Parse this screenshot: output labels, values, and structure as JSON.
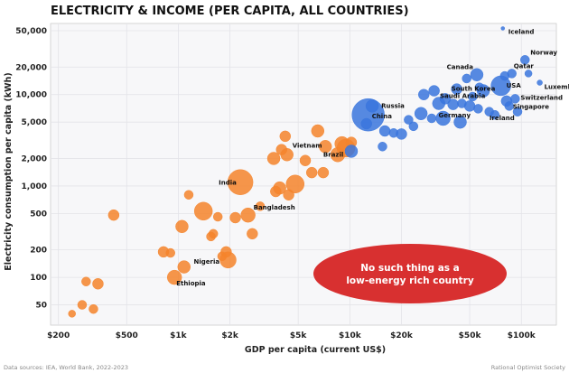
{
  "chart_data": {
    "type": "scatter",
    "title": "ELECTRICITY & INCOME (PER CAPITA, ALL COUNTRIES)",
    "xlabel": "GDP per capita (current US$)",
    "ylabel": "Electricity consumption per capita (kWh)",
    "x_scale": "log",
    "y_scale": "log",
    "xlim": [
      180,
      160000
    ],
    "ylim": [
      30,
      60000
    ],
    "grid": true,
    "x_ticks": [
      {
        "value": 200,
        "label": "$200"
      },
      {
        "value": 500,
        "label": "$500"
      },
      {
        "value": 1000,
        "label": "$1k"
      },
      {
        "value": 2000,
        "label": "$2k"
      },
      {
        "value": 5000,
        "label": "$5k"
      },
      {
        "value": 10000,
        "label": "$10k"
      },
      {
        "value": 20000,
        "label": "$20k"
      },
      {
        "value": 50000,
        "label": "$50k"
      },
      {
        "value": 100000,
        "label": "$100k"
      }
    ],
    "y_ticks": [
      {
        "value": 50,
        "label": "50"
      },
      {
        "value": 100,
        "label": "100"
      },
      {
        "value": 200,
        "label": "200"
      },
      {
        "value": 500,
        "label": "500"
      },
      {
        "value": 1000,
        "label": "1,000"
      },
      {
        "value": 2000,
        "label": "2,000"
      },
      {
        "value": 5000,
        "label": "5,000"
      },
      {
        "value": 10000,
        "label": "10,000"
      },
      {
        "value": 20000,
        "label": "20,000"
      },
      {
        "value": 50000,
        "label": "50,000"
      }
    ],
    "colors": {
      "low_income": "#f4842c",
      "high_income": "#3a75dd",
      "callout": "#d83030"
    },
    "series": [
      {
        "color": "#f4842c",
        "points": [
          {
            "x": 240,
            "y": 40,
            "r": 4
          },
          {
            "x": 275,
            "y": 50,
            "r": 5
          },
          {
            "x": 290,
            "y": 90,
            "r": 5
          },
          {
            "x": 320,
            "y": 45,
            "r": 5
          },
          {
            "x": 340,
            "y": 85,
            "r": 6
          },
          {
            "x": 420,
            "y": 480,
            "r": 6
          },
          {
            "x": 820,
            "y": 190,
            "r": 6
          },
          {
            "x": 900,
            "y": 185,
            "r": 5
          },
          {
            "x": 950,
            "y": 100,
            "r": 8
          },
          {
            "x": 1050,
            "y": 360,
            "r": 7
          },
          {
            "x": 1080,
            "y": 130,
            "r": 7
          },
          {
            "x": 1150,
            "y": 800,
            "r": 5
          },
          {
            "x": 1400,
            "y": 530,
            "r": 10
          },
          {
            "x": 1550,
            "y": 280,
            "r": 5
          },
          {
            "x": 1600,
            "y": 300,
            "r": 5
          },
          {
            "x": 1700,
            "y": 460,
            "r": 5
          },
          {
            "x": 1800,
            "y": 170,
            "r": 5
          },
          {
            "x": 1900,
            "y": 190,
            "r": 6
          },
          {
            "x": 1950,
            "y": 155,
            "r": 9
          },
          {
            "x": 2150,
            "y": 450,
            "r": 6
          },
          {
            "x": 2300,
            "y": 1100,
            "r": 14
          },
          {
            "x": 2550,
            "y": 480,
            "r": 8
          },
          {
            "x": 2700,
            "y": 300,
            "r": 6
          },
          {
            "x": 3000,
            "y": 600,
            "r": 5
          },
          {
            "x": 3600,
            "y": 2000,
            "r": 7
          },
          {
            "x": 3700,
            "y": 870,
            "r": 6
          },
          {
            "x": 3900,
            "y": 950,
            "r": 7
          },
          {
            "x": 4000,
            "y": 2500,
            "r": 6
          },
          {
            "x": 4200,
            "y": 3500,
            "r": 6
          },
          {
            "x": 4300,
            "y": 2200,
            "r": 7
          },
          {
            "x": 4400,
            "y": 800,
            "r": 6
          },
          {
            "x": 4800,
            "y": 1050,
            "r": 10
          },
          {
            "x": 5500,
            "y": 1900,
            "r": 6
          },
          {
            "x": 6000,
            "y": 1400,
            "r": 6
          },
          {
            "x": 6500,
            "y": 4000,
            "r": 7
          },
          {
            "x": 7000,
            "y": 1400,
            "r": 6
          },
          {
            "x": 7200,
            "y": 2700,
            "r": 7
          },
          {
            "x": 8500,
            "y": 2200,
            "r": 8
          },
          {
            "x": 9000,
            "y": 2900,
            "r": 8
          },
          {
            "x": 9500,
            "y": 2600,
            "r": 10
          },
          {
            "x": 10200,
            "y": 3000,
            "r": 6
          }
        ]
      },
      {
        "color": "#3a75dd",
        "points": [
          {
            "x": 10200,
            "y": 2400,
            "r": 7
          },
          {
            "x": 12500,
            "y": 4800,
            "r": 6
          },
          {
            "x": 12800,
            "y": 6000,
            "r": 18
          },
          {
            "x": 13500,
            "y": 7500,
            "r": 7
          },
          {
            "x": 15500,
            "y": 2700,
            "r": 5
          },
          {
            "x": 16000,
            "y": 4000,
            "r": 6
          },
          {
            "x": 18000,
            "y": 3800,
            "r": 5
          },
          {
            "x": 20000,
            "y": 3700,
            "r": 6
          },
          {
            "x": 22000,
            "y": 5300,
            "r": 5
          },
          {
            "x": 23500,
            "y": 4500,
            "r": 5
          },
          {
            "x": 26000,
            "y": 6200,
            "r": 7
          },
          {
            "x": 27000,
            "y": 10000,
            "r": 6
          },
          {
            "x": 30000,
            "y": 5500,
            "r": 5
          },
          {
            "x": 31000,
            "y": 11000,
            "r": 6
          },
          {
            "x": 33000,
            "y": 8000,
            "r": 7
          },
          {
            "x": 35000,
            "y": 5500,
            "r": 8
          },
          {
            "x": 36000,
            "y": 9000,
            "r": 6
          },
          {
            "x": 40000,
            "y": 7800,
            "r": 6
          },
          {
            "x": 42000,
            "y": 11500,
            "r": 6
          },
          {
            "x": 44000,
            "y": 5000,
            "r": 7
          },
          {
            "x": 45000,
            "y": 8000,
            "r": 5
          },
          {
            "x": 48000,
            "y": 15000,
            "r": 5
          },
          {
            "x": 50000,
            "y": 7500,
            "r": 6
          },
          {
            "x": 52000,
            "y": 9500,
            "r": 5
          },
          {
            "x": 55000,
            "y": 16500,
            "r": 7
          },
          {
            "x": 56000,
            "y": 7000,
            "r": 5
          },
          {
            "x": 57000,
            "y": 12000,
            "r": 5
          },
          {
            "x": 60000,
            "y": 11000,
            "r": 7
          },
          {
            "x": 65000,
            "y": 6500,
            "r": 5
          },
          {
            "x": 70000,
            "y": 6000,
            "r": 5
          },
          {
            "x": 76000,
            "y": 12500,
            "r": 11
          },
          {
            "x": 78000,
            "y": 53000,
            "r": 2
          },
          {
            "x": 80000,
            "y": 16000,
            "r": 5
          },
          {
            "x": 82000,
            "y": 8500,
            "r": 6
          },
          {
            "x": 85000,
            "y": 7500,
            "r": 5
          },
          {
            "x": 88000,
            "y": 17000,
            "r": 5
          },
          {
            "x": 92000,
            "y": 9000,
            "r": 5
          },
          {
            "x": 95000,
            "y": 6500,
            "r": 5
          },
          {
            "x": 105000,
            "y": 24000,
            "r": 5
          },
          {
            "x": 110000,
            "y": 17000,
            "r": 4
          },
          {
            "x": 128000,
            "y": 13500,
            "r": 3
          }
        ]
      }
    ],
    "annotations": [
      {
        "text": "Iceland",
        "x": 78000,
        "y": 53000,
        "dx": 6,
        "dy": 6,
        "anchor": "start"
      },
      {
        "text": "Norway",
        "x": 105000,
        "y": 24000,
        "dx": 6,
        "dy": -6,
        "anchor": "start"
      },
      {
        "text": "Qatar",
        "x": 88000,
        "y": 17000,
        "dx": 2,
        "dy": -6,
        "anchor": "start"
      },
      {
        "text": "Canada",
        "x": 55000,
        "y": 16500,
        "dx": -4,
        "dy": -6,
        "anchor": "end"
      },
      {
        "text": "Luxembourg",
        "x": 128000,
        "y": 13500,
        "dx": 5,
        "dy": 7,
        "anchor": "start"
      },
      {
        "text": "South Korea",
        "x": 42000,
        "y": 11500,
        "dx": -6,
        "dy": 2,
        "anchor": "start"
      },
      {
        "text": "USA",
        "x": 76000,
        "y": 12500,
        "dx": 6,
        "dy": 2,
        "anchor": "start"
      },
      {
        "text": "Switzerland",
        "x": 92000,
        "y": 9000,
        "dx": 6,
        "dy": 1,
        "anchor": "start"
      },
      {
        "text": "Saudi Arabia",
        "x": 36000,
        "y": 9000,
        "dx": -6,
        "dy": -1,
        "anchor": "start"
      },
      {
        "text": "Russia",
        "x": 13500,
        "y": 7500,
        "dx": 10,
        "dy": 2,
        "anchor": "start"
      },
      {
        "text": "Singapore",
        "x": 85000,
        "y": 7500,
        "dx": 4,
        "dy": 3,
        "anchor": "start"
      },
      {
        "text": "Germany",
        "x": 44000,
        "y": 5000,
        "dx": -24,
        "dy": -5,
        "anchor": "start"
      },
      {
        "text": "Ireland",
        "x": 70000,
        "y": 6000,
        "dx": -6,
        "dy": 6,
        "anchor": "start"
      },
      {
        "text": "China",
        "x": 12800,
        "y": 6000,
        "dx": 4,
        "dy": 4,
        "anchor": "start"
      },
      {
        "text": "Vietnam",
        "x": 4300,
        "y": 2200,
        "dx": 6,
        "dy": -8,
        "anchor": "start"
      },
      {
        "text": "Brazil",
        "x": 8500,
        "y": 2200,
        "dx": -16,
        "dy": 2,
        "anchor": "start"
      },
      {
        "text": "India",
        "x": 2300,
        "y": 1100,
        "dx": -24,
        "dy": 3,
        "anchor": "start"
      },
      {
        "text": "Bangladesh",
        "x": 2550,
        "y": 480,
        "dx": 6,
        "dy": -6,
        "anchor": "start"
      },
      {
        "text": "Nigeria",
        "x": 1950,
        "y": 155,
        "dx": -38,
        "dy": 4,
        "anchor": "start"
      },
      {
        "text": "Ethiopia",
        "x": 950,
        "y": 100,
        "dx": 2,
        "dy": 9,
        "anchor": "start"
      }
    ],
    "callout": {
      "line1": "No such thing as a",
      "line2": "low-energy rich country"
    }
  },
  "footer": {
    "sources": "Data sources: IEA, World Bank, 2022-2023",
    "credit": "Rational Optimist Society"
  }
}
